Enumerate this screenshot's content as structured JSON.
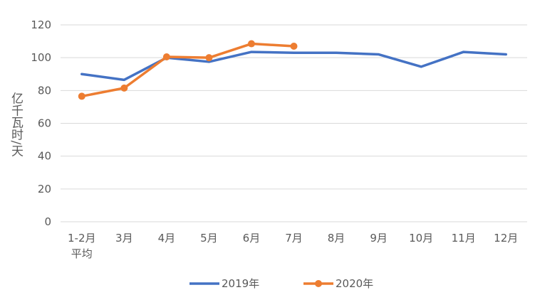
{
  "chart_data": {
    "type": "line",
    "title": "",
    "xlabel": "",
    "ylabel": "亿千瓦时/天",
    "categories": [
      "1-2月\n平均",
      "3月",
      "4月",
      "5月",
      "6月",
      "7月",
      "8月",
      "9月",
      "10月",
      "11月",
      "12月"
    ],
    "ylim": [
      0,
      120
    ],
    "yticks": [
      0,
      20,
      40,
      60,
      80,
      100,
      120
    ],
    "grid": true,
    "legend_position": "bottom",
    "series": [
      {
        "name": "2019年",
        "color": "#4472C4",
        "markers": false,
        "values": [
          90,
          86.5,
          100,
          97.5,
          103.5,
          103,
          103,
          102,
          94.5,
          103.5,
          102
        ]
      },
      {
        "name": "2020年",
        "color": "#ED7D31",
        "markers": true,
        "values": [
          76.5,
          81.5,
          100.5,
          100,
          108.5,
          107,
          null,
          null,
          null,
          null,
          null
        ]
      }
    ]
  }
}
